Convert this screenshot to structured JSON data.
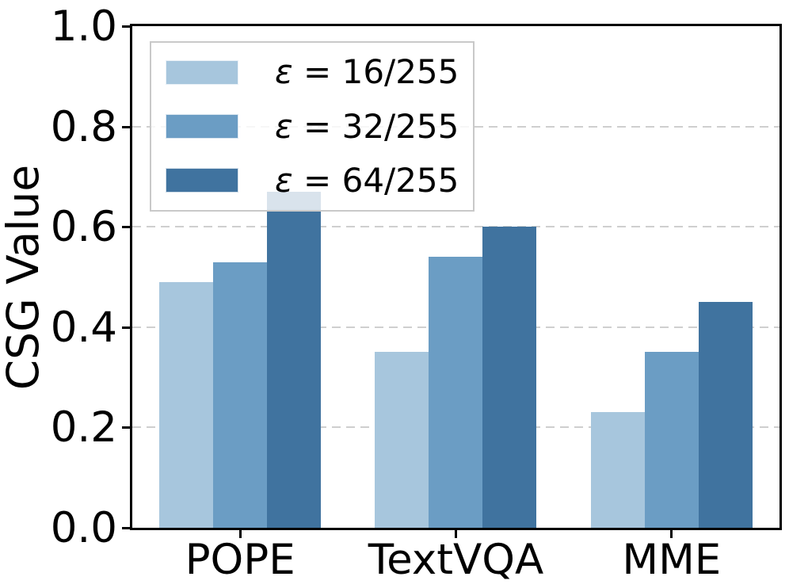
{
  "chart_data": {
    "type": "bar",
    "title": "",
    "xlabel": "",
    "ylabel": "CSG Value",
    "categories": [
      "POPE",
      "TextVQA",
      "MME"
    ],
    "series": [
      {
        "name": "ε = 16/255",
        "symbol": "ε",
        "label_rest": " = 16/255",
        "color": "#a7c6dd",
        "values": [
          0.49,
          0.35,
          0.23
        ]
      },
      {
        "name": "ε = 32/255",
        "symbol": "ε",
        "label_rest": " = 32/255",
        "color": "#6b9dc4",
        "values": [
          0.53,
          0.54,
          0.35
        ]
      },
      {
        "name": "ε = 64/255",
        "symbol": "ε",
        "label_rest": " = 64/255",
        "color": "#40739f",
        "values": [
          0.67,
          0.6,
          0.45
        ]
      }
    ],
    "ylim": [
      0.0,
      1.0
    ],
    "yticks": [
      0.0,
      0.2,
      0.4,
      0.6,
      0.8,
      1.0
    ],
    "ytick_labels": [
      "0.0",
      "0.2",
      "0.4",
      "0.6",
      "0.8",
      "1.0"
    ],
    "grid": "horizontal dashed gridlines at 0.2, 0.4, 0.6, 0.8",
    "legend_position": "upper left"
  },
  "colors": {
    "background": "#ffffff",
    "spine": "#000000",
    "grid": "#cfcfcf",
    "legend_border": "#c9c9c9",
    "bar_light": "#a7c6dd",
    "bar_medium": "#6b9dc4",
    "bar_dark": "#40739f"
  }
}
